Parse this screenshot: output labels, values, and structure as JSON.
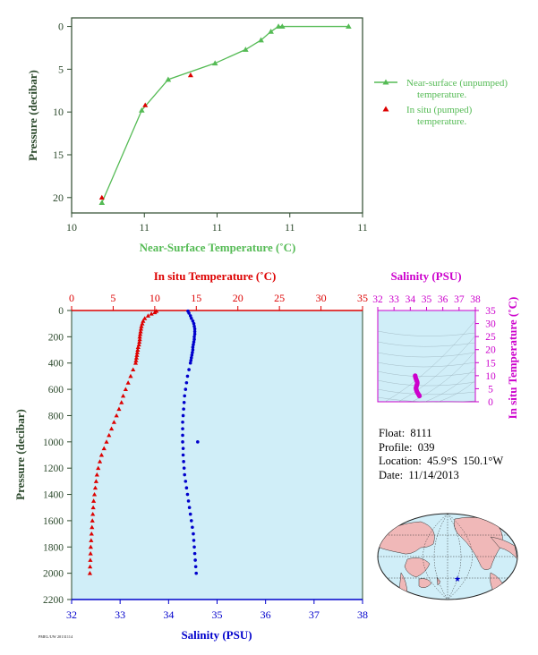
{
  "colors": {
    "near_surface": "#55bb55",
    "in_situ_marker": "#dd0000",
    "temperature": "#dd0000",
    "salinity": "#0000cc",
    "salinity_axis_inset": "#cc00cc",
    "plot_background": "#d0eef8",
    "axis_dark": "#2d4a2d",
    "land": "#f0b8b8",
    "ocean": "#d0eef8"
  },
  "float_info": {
    "float_line": "Float:  8111",
    "profile_line": "Profile:  039",
    "location_line": "Location:  45.9°S  150.1°W",
    "date_line": "Date:  11/14/2013"
  },
  "footer_text": "PMEL/UW 20131114",
  "chart_data": [
    {
      "type": "line",
      "name": "near-surface",
      "xlabel": "Near-Surface Temperature (˚C)",
      "ylabel": "Pressure (decibar)",
      "x_tick_labels": [
        "10",
        "11",
        "11",
        "11",
        "11"
      ],
      "y_ticks": [
        0,
        5,
        10,
        15,
        20
      ],
      "xlim": [
        10.0,
        11.0
      ],
      "ylim": [
        21.8,
        -1.0
      ],
      "series": [
        {
          "name": "Near-surface (unpumped) temperature.",
          "marker": "triangle",
          "line": true,
          "x": [
            10.104,
            10.241,
            10.332,
            10.493,
            10.598,
            10.651,
            10.685,
            10.711,
            10.724,
            10.952
          ],
          "y": [
            20.6,
            9.8,
            6.2,
            4.3,
            2.7,
            1.6,
            0.6,
            0.0,
            0.0,
            0.0
          ]
        },
        {
          "name": "In situ (pumped) temperature.",
          "marker": "triangle",
          "line": false,
          "x": [
            10.104,
            10.253,
            10.409
          ],
          "y": [
            20.0,
            9.2,
            5.7
          ]
        }
      ],
      "legend_position": "right",
      "grid": false
    },
    {
      "type": "scatter",
      "name": "profile",
      "ylabel": "Pressure (decibar)",
      "y_ticks": [
        0,
        200,
        400,
        600,
        800,
        1000,
        1200,
        1400,
        1600,
        1800,
        2000,
        2200
      ],
      "ylim": [
        2200,
        0
      ],
      "top_axis": {
        "label": "In situ Temperature (˚C)",
        "ticks": [
          0,
          5,
          10,
          15,
          20,
          25,
          30,
          35
        ],
        "lim": [
          0,
          35
        ]
      },
      "bottom_axis": {
        "label": "Salinity (PSU)",
        "ticks": [
          32,
          33,
          34,
          35,
          36,
          37,
          38
        ],
        "lim": [
          32,
          38
        ]
      },
      "series": [
        {
          "name": "In situ Temperature (˚C)",
          "marker": "triangle",
          "pressure": [
            5,
            15,
            25,
            40,
            60,
            80,
            100,
            120,
            140,
            160,
            180,
            200,
            220,
            240,
            260,
            280,
            300,
            320,
            340,
            360,
            380,
            400,
            450,
            500,
            550,
            600,
            650,
            700,
            750,
            800,
            850,
            900,
            950,
            1000,
            1050,
            1100,
            1150,
            1200,
            1250,
            1300,
            1350,
            1400,
            1450,
            1500,
            1550,
            1600,
            1650,
            1700,
            1750,
            1800,
            1850,
            1900,
            1950,
            2000
          ],
          "values": [
            10.2,
            10.0,
            9.6,
            9.2,
            8.8,
            8.6,
            8.5,
            8.4,
            8.35,
            8.3,
            8.25,
            8.2,
            8.2,
            8.15,
            8.1,
            8.0,
            7.95,
            7.9,
            7.85,
            7.8,
            7.75,
            7.7,
            7.4,
            7.1,
            6.8,
            6.5,
            6.2,
            6.0,
            5.7,
            5.4,
            5.1,
            4.8,
            4.5,
            4.2,
            3.9,
            3.6,
            3.4,
            3.2,
            3.05,
            2.95,
            2.85,
            2.75,
            2.65,
            2.6,
            2.55,
            2.5,
            2.45,
            2.4,
            2.35,
            2.3,
            2.28,
            2.25,
            2.22,
            2.2
          ]
        },
        {
          "name": "Salinity (PSU)",
          "marker": "circle",
          "pressure": [
            5,
            20,
            40,
            60,
            80,
            100,
            120,
            140,
            160,
            180,
            200,
            220,
            240,
            260,
            280,
            300,
            320,
            340,
            360,
            380,
            400,
            450,
            500,
            550,
            600,
            650,
            700,
            750,
            800,
            850,
            900,
            950,
            1000,
            1050,
            1100,
            1150,
            1200,
            1250,
            1300,
            1350,
            1400,
            1450,
            1500,
            1550,
            1600,
            1650,
            1700,
            1750,
            1800,
            1850,
            1900,
            1950,
            2000
          ],
          "values": [
            34.4,
            34.42,
            34.45,
            34.47,
            34.5,
            34.52,
            34.53,
            34.54,
            34.54,
            34.54,
            34.53,
            34.53,
            34.52,
            34.51,
            34.5,
            34.5,
            34.49,
            34.48,
            34.47,
            34.46,
            34.45,
            34.42,
            34.39,
            34.37,
            34.35,
            34.33,
            34.32,
            34.31,
            34.3,
            34.29,
            34.29,
            34.29,
            34.29,
            34.3,
            34.3,
            34.31,
            34.32,
            34.33,
            34.35,
            34.37,
            34.39,
            34.41,
            34.43,
            34.45,
            34.47,
            34.49,
            34.51,
            34.52,
            34.53,
            34.54,
            34.55,
            34.56,
            34.57
          ]
        }
      ],
      "extra_points": [
        {
          "series": "Salinity (PSU)",
          "pressure": 1000,
          "value": 34.6
        }
      ],
      "grid": false
    },
    {
      "type": "scatter",
      "name": "T-S inset",
      "top_axis": {
        "label": "Salinity (PSU)",
        "ticks": [
          32,
          33,
          34,
          35,
          36,
          37,
          38
        ],
        "lim": [
          32,
          38
        ]
      },
      "right_axis": {
        "label": "In situ Temperature (˚C)",
        "ticks": [
          0,
          5,
          10,
          15,
          20,
          25,
          30,
          35
        ],
        "lim": [
          0,
          35
        ]
      },
      "series": [
        {
          "name": "T-S",
          "salinity": [
            34.3,
            34.31,
            34.33,
            34.35,
            34.37,
            34.4,
            34.42,
            34.43,
            34.42,
            34.4,
            34.38,
            34.36,
            34.35,
            34.36,
            34.38,
            34.4,
            34.43,
            34.47,
            34.5,
            34.53,
            34.55,
            34.56
          ],
          "temperature": [
            10.0,
            9.6,
            9.2,
            8.8,
            8.4,
            8.0,
            7.6,
            7.2,
            6.8,
            6.4,
            6.0,
            5.6,
            5.2,
            4.8,
            4.4,
            4.0,
            3.6,
            3.2,
            2.9,
            2.6,
            2.4,
            2.2
          ]
        }
      ],
      "grid": false
    }
  ],
  "map": {
    "marker_symbol": "★",
    "marker": {
      "lat": -45.9,
      "lon": -150.1
    }
  }
}
